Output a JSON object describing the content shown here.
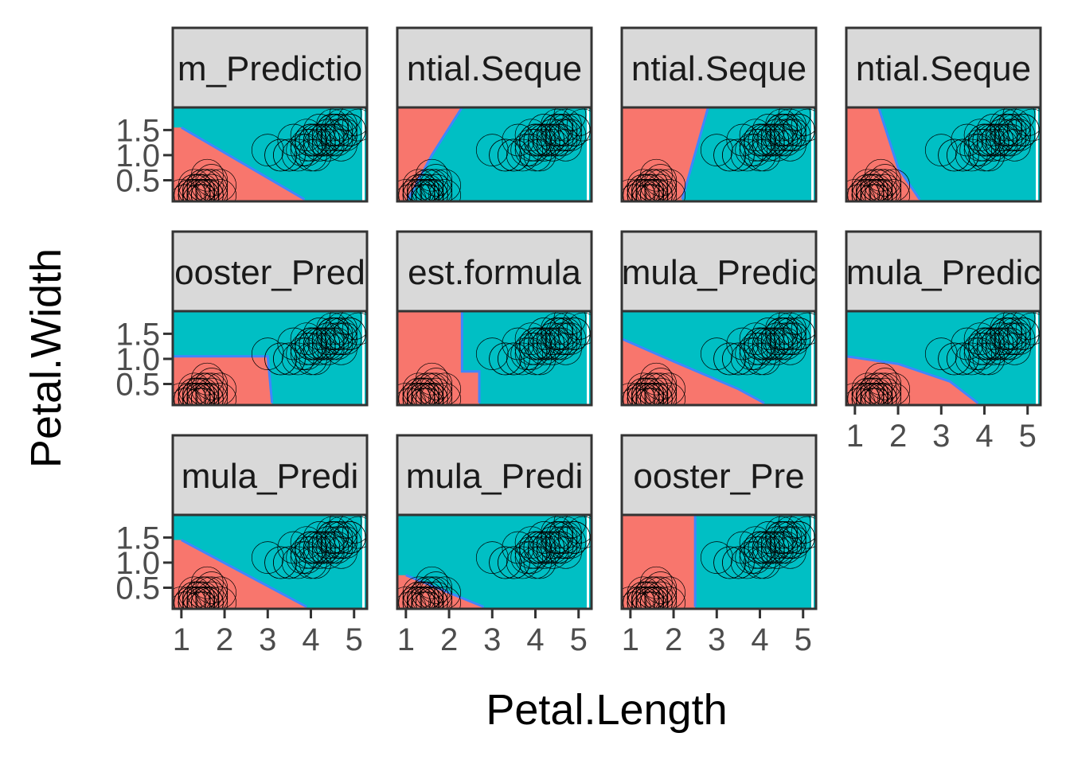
{
  "chart_data": {
    "type": "scatter",
    "facet_layout": {
      "ncol": 4,
      "nrow": 3
    },
    "xlabel": "Petal.Length",
    "ylabel": "Petal.Width",
    "xlim": [
      0.8,
      5.3
    ],
    "ylim": [
      0.08,
      1.95
    ],
    "x_ticks": [
      1,
      2,
      3,
      4,
      5
    ],
    "y_ticks": [
      0.5,
      1.0,
      1.5
    ],
    "x_tick_labels": [
      "1",
      "2",
      "3",
      "4",
      "5"
    ],
    "y_tick_labels": [
      "0.5",
      "1.0",
      "1.5"
    ],
    "colors": {
      "class_a_fill": "#F8766D",
      "class_b_fill": "#00BFC4",
      "boundary": "#3F86FF",
      "strip_fill": "#D9D9D9",
      "panel_border": "#333333",
      "point_stroke": "#000000"
    },
    "panels": [
      {
        "strip": "m_Predictio",
        "boundary": [
          [
            1.0,
            1.55
          ],
          [
            3.85,
            0.12
          ]
        ]
      },
      {
        "strip": "ntial.Seque",
        "boundary": [
          [
            2.3,
            1.95
          ],
          [
            1.6,
            1.0
          ],
          [
            1.05,
            0.12
          ]
        ]
      },
      {
        "strip": "ntial.Seque",
        "boundary": [
          [
            2.8,
            1.95
          ],
          [
            2.2,
            0.12
          ]
        ]
      },
      {
        "strip": "ntial.Seque",
        "boundary": [
          [
            1.55,
            1.95
          ],
          [
            2.0,
            0.75
          ],
          [
            2.5,
            0.12
          ]
        ]
      },
      {
        "strip": "ooster_Pred",
        "boundary": [
          [
            0.8,
            1.05
          ],
          [
            3.0,
            1.05
          ],
          [
            3.1,
            0.12
          ]
        ]
      },
      {
        "strip": "est.formula",
        "boundary": [
          [
            2.3,
            1.95
          ],
          [
            2.3,
            0.75
          ],
          [
            2.7,
            0.75
          ],
          [
            2.7,
            0.12
          ]
        ]
      },
      {
        "strip": "mula_Predic",
        "boundary": [
          [
            0.8,
            1.4
          ],
          [
            2.0,
            0.95
          ],
          [
            3.5,
            0.4
          ],
          [
            4.1,
            0.12
          ]
        ]
      },
      {
        "strip": "mula_Predic",
        "boundary": [
          [
            0.8,
            1.05
          ],
          [
            2.0,
            0.9
          ],
          [
            3.2,
            0.55
          ],
          [
            3.85,
            0.12
          ]
        ]
      },
      {
        "strip": "mula_Predi",
        "boundary": [
          [
            1.0,
            1.45
          ],
          [
            3.9,
            0.12
          ]
        ]
      },
      {
        "strip": "mula_Predi",
        "boundary": [
          [
            1.0,
            0.75
          ],
          [
            2.8,
            0.12
          ]
        ]
      },
      {
        "strip": "ooster_Pre",
        "boundary": [
          [
            2.5,
            1.95
          ],
          [
            2.5,
            0.12
          ]
        ]
      }
    ],
    "class_a_points": [
      [
        1.4,
        0.2
      ],
      [
        1.4,
        0.2
      ],
      [
        1.3,
        0.2
      ],
      [
        1.5,
        0.2
      ],
      [
        1.4,
        0.2
      ],
      [
        1.7,
        0.4
      ],
      [
        1.4,
        0.3
      ],
      [
        1.5,
        0.2
      ],
      [
        1.4,
        0.2
      ],
      [
        1.5,
        0.1
      ],
      [
        1.5,
        0.2
      ],
      [
        1.6,
        0.2
      ],
      [
        1.4,
        0.1
      ],
      [
        1.1,
        0.1
      ],
      [
        1.2,
        0.2
      ],
      [
        1.5,
        0.4
      ],
      [
        1.3,
        0.4
      ],
      [
        1.4,
        0.3
      ],
      [
        1.7,
        0.3
      ],
      [
        1.5,
        0.3
      ],
      [
        1.7,
        0.2
      ],
      [
        1.5,
        0.4
      ],
      [
        1.0,
        0.2
      ],
      [
        1.7,
        0.5
      ],
      [
        1.9,
        0.2
      ],
      [
        1.6,
        0.2
      ],
      [
        1.6,
        0.4
      ],
      [
        1.5,
        0.2
      ],
      [
        1.4,
        0.2
      ],
      [
        1.6,
        0.2
      ],
      [
        1.6,
        0.2
      ],
      [
        1.5,
        0.4
      ],
      [
        1.5,
        0.1
      ],
      [
        1.4,
        0.2
      ],
      [
        1.5,
        0.2
      ],
      [
        1.2,
        0.2
      ],
      [
        1.3,
        0.2
      ],
      [
        1.4,
        0.1
      ],
      [
        1.3,
        0.2
      ],
      [
        1.5,
        0.2
      ],
      [
        1.3,
        0.3
      ],
      [
        1.3,
        0.3
      ],
      [
        1.3,
        0.2
      ],
      [
        1.6,
        0.6
      ],
      [
        1.9,
        0.4
      ],
      [
        1.4,
        0.3
      ],
      [
        1.6,
        0.2
      ],
      [
        1.4,
        0.2
      ],
      [
        1.5,
        0.2
      ],
      [
        1.4,
        0.2
      ]
    ],
    "class_b_points": [
      [
        4.7,
        1.4
      ],
      [
        4.5,
        1.5
      ],
      [
        4.9,
        1.5
      ],
      [
        4.0,
        1.3
      ],
      [
        4.6,
        1.5
      ],
      [
        4.5,
        1.3
      ],
      [
        4.7,
        1.6
      ],
      [
        3.3,
        1.0
      ],
      [
        4.6,
        1.3
      ],
      [
        3.9,
        1.4
      ],
      [
        3.5,
        1.0
      ],
      [
        4.2,
        1.5
      ],
      [
        4.0,
        1.0
      ],
      [
        4.7,
        1.4
      ],
      [
        3.6,
        1.3
      ],
      [
        4.4,
        1.4
      ],
      [
        4.5,
        1.5
      ],
      [
        4.1,
        1.0
      ],
      [
        4.5,
        1.5
      ],
      [
        3.9,
        1.1
      ],
      [
        4.8,
        1.8
      ],
      [
        4.0,
        1.3
      ],
      [
        4.9,
        1.5
      ],
      [
        4.7,
        1.2
      ],
      [
        4.3,
        1.3
      ],
      [
        4.4,
        1.4
      ],
      [
        4.8,
        1.4
      ],
      [
        5.0,
        1.7
      ],
      [
        4.5,
        1.5
      ],
      [
        3.5,
        1.0
      ],
      [
        3.8,
        1.1
      ],
      [
        3.7,
        1.0
      ],
      [
        3.9,
        1.2
      ],
      [
        5.1,
        1.6
      ],
      [
        4.5,
        1.5
      ],
      [
        4.5,
        1.6
      ],
      [
        4.7,
        1.5
      ],
      [
        4.4,
        1.3
      ],
      [
        4.1,
        1.3
      ],
      [
        4.0,
        1.3
      ],
      [
        4.4,
        1.2
      ],
      [
        4.6,
        1.4
      ],
      [
        4.0,
        1.2
      ],
      [
        3.3,
        1.0
      ],
      [
        4.2,
        1.3
      ],
      [
        4.2,
        1.2
      ],
      [
        4.2,
        1.3
      ],
      [
        4.3,
        1.3
      ],
      [
        3.0,
        1.1
      ],
      [
        4.1,
        1.3
      ]
    ]
  }
}
